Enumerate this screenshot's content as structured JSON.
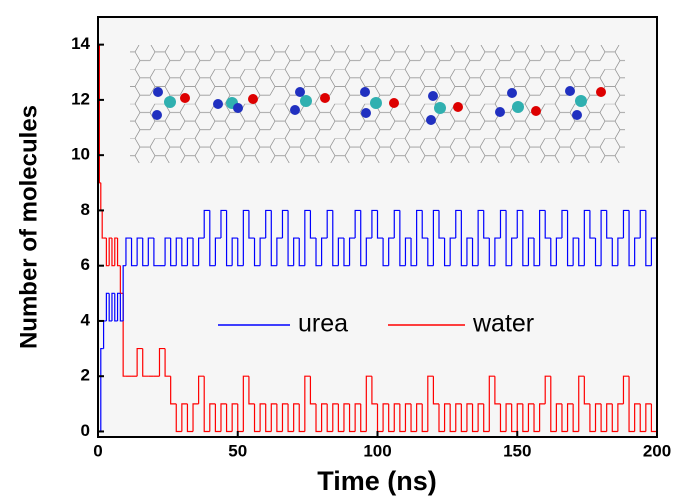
{
  "chart_data": {
    "type": "line",
    "drawstyle": "steps-post",
    "xlabel": "Time (ns)",
    "ylabel": "Number of molecules",
    "xlim": [
      0,
      200
    ],
    "ylim": [
      -0.2,
      15
    ],
    "xticks": [
      0,
      50,
      100,
      150,
      200
    ],
    "yticks": [
      0,
      2,
      4,
      6,
      8,
      10,
      12,
      14
    ],
    "legend": "center",
    "x": [
      0,
      0.5,
      1,
      1.5,
      2,
      3,
      4,
      5,
      6,
      7,
      8,
      9,
      10,
      12,
      14,
      16,
      18,
      20,
      22,
      24,
      26,
      28,
      30,
      32,
      34,
      36,
      38,
      40,
      42,
      44,
      46,
      48,
      50,
      52,
      54,
      56,
      58,
      60,
      62,
      64,
      66,
      68,
      70,
      72,
      74,
      76,
      78,
      80,
      82,
      84,
      86,
      88,
      90,
      92,
      94,
      96,
      98,
      100,
      102,
      104,
      106,
      108,
      110,
      112,
      114,
      116,
      118,
      120,
      122,
      124,
      126,
      128,
      130,
      132,
      134,
      136,
      138,
      140,
      142,
      144,
      146,
      148,
      150,
      152,
      154,
      156,
      158,
      160,
      162,
      164,
      166,
      168,
      170,
      172,
      174,
      176,
      178,
      180,
      182,
      184,
      186,
      188,
      190,
      192,
      194,
      196,
      198,
      200
    ],
    "series": [
      {
        "name": "urea",
        "color": "#0000ff",
        "values": [
          0,
          0,
          3,
          3,
          4,
          5,
          4,
          5,
          4,
          5,
          4,
          6,
          7,
          6,
          7,
          6,
          7,
          6,
          6,
          7,
          6,
          7,
          6,
          7,
          6,
          7,
          8,
          6,
          7,
          8,
          6,
          7,
          6,
          8,
          7,
          6,
          7,
          8,
          6,
          7,
          8,
          6,
          7,
          6,
          8,
          7,
          6,
          7,
          8,
          6,
          7,
          6,
          7,
          8,
          6,
          7,
          8,
          7,
          6,
          7,
          8,
          6,
          7,
          6,
          8,
          7,
          6,
          8,
          7,
          6,
          7,
          8,
          6,
          7,
          6,
          8,
          7,
          6,
          7,
          8,
          6,
          7,
          8,
          6,
          7,
          6,
          8,
          7,
          6,
          7,
          8,
          6,
          7,
          6,
          8,
          7,
          6,
          8,
          7,
          6,
          7,
          8,
          6,
          7,
          8,
          6,
          7,
          6
        ]
      },
      {
        "name": "water",
        "color": "#ff0000",
        "values": [
          14,
          9,
          8,
          7,
          7,
          6,
          7,
          6,
          7,
          6,
          5,
          2,
          2,
          2,
          3,
          2,
          2,
          2,
          3,
          2,
          1,
          0,
          1,
          0,
          1,
          2,
          0,
          1,
          0,
          1,
          0,
          1,
          0,
          2,
          1,
          0,
          1,
          0,
          1,
          0,
          1,
          0,
          1,
          0,
          2,
          1,
          0,
          1,
          0,
          1,
          0,
          1,
          0,
          1,
          0,
          2,
          1,
          0,
          1,
          0,
          1,
          0,
          1,
          0,
          1,
          0,
          2,
          1,
          0,
          1,
          0,
          1,
          0,
          1,
          0,
          1,
          0,
          2,
          1,
          0,
          1,
          0,
          1,
          0,
          1,
          0,
          1,
          2,
          0,
          1,
          0,
          1,
          0,
          2,
          1,
          0,
          1,
          0,
          1,
          0,
          1,
          2,
          0,
          1,
          0,
          1,
          0,
          1
        ]
      }
    ]
  }
}
